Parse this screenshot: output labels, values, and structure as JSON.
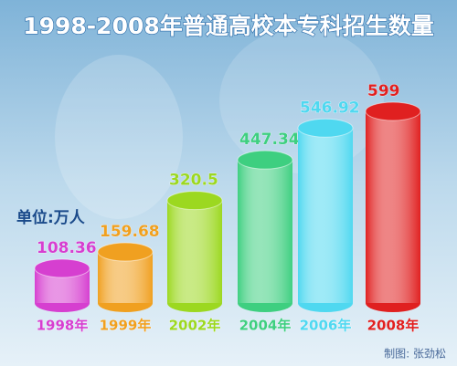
{
  "chart_data": {
    "type": "bar",
    "title": "1998-2008年普通高校本专科招生数量",
    "unit_label": "单位:万人",
    "credit": "制图: 张劲松",
    "categories": [
      "1998年",
      "1999年",
      "2002年",
      "2004年",
      "2006年",
      "2008年"
    ],
    "values": [
      108.36,
      159.68,
      320.5,
      447.34,
      546.92,
      599
    ],
    "colors": [
      "#d63fd0",
      "#f0a020",
      "#9cd820",
      "#3ecf80",
      "#4fd8f0",
      "#e02020"
    ]
  }
}
